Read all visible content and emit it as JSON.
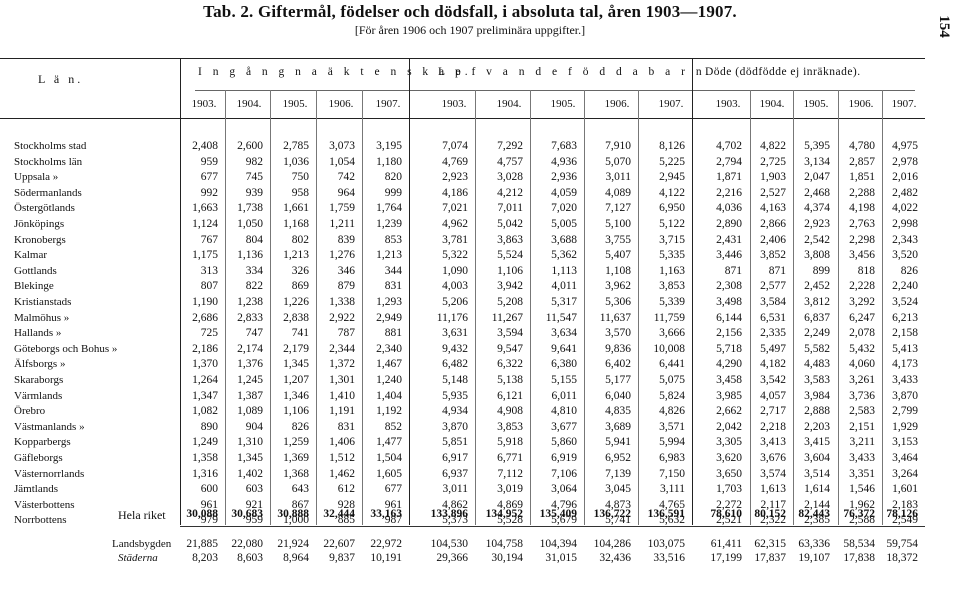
{
  "title": "Tab. 2. Giftermål, födelser och dödsfall, i absoluta tal, åren 1903—1907.",
  "subtitle": "[För åren 1906 och 1907 preliminära uppgifter.]",
  "page_number": "154",
  "lan_header": "L ä n.",
  "groups": [
    "I n g å n g n a   ä k t e n s k a p.",
    "L e f v a n d e   f ö d d a   b a r n.",
    "Döde (dödfödde ej inräknade)."
  ],
  "years": [
    "1903.",
    "1904.",
    "1905.",
    "1906.",
    "1907."
  ],
  "rows": [
    {
      "name": "Stockholms stad",
      "v": [
        "2,408",
        "2,600",
        "2,785",
        "3,073",
        "3,195",
        "7,074",
        "7,292",
        "7,683",
        "7,910",
        "8,126",
        "4,702",
        "4,822",
        "5,395",
        "4,780",
        "4,975"
      ]
    },
    {
      "name": "Stockholms    län",
      "v": [
        "959",
        "982",
        "1,036",
        "1,054",
        "1,180",
        "4,769",
        "4,757",
        "4,936",
        "5,070",
        "5,225",
        "2,794",
        "2,725",
        "3,134",
        "2,857",
        "2,978"
      ]
    },
    {
      "name": "Uppsala       »",
      "v": [
        "677",
        "745",
        "750",
        "742",
        "820",
        "2,923",
        "3,028",
        "2,936",
        "3,011",
        "2,945",
        "1,871",
        "1,903",
        "2,047",
        "1,851",
        "2,016"
      ]
    },
    {
      "name": "Södermanlands",
      "v": [
        "992",
        "939",
        "958",
        "964",
        "999",
        "4,186",
        "4,212",
        "4,059",
        "4,089",
        "4,122",
        "2,216",
        "2,527",
        "2,468",
        "2,288",
        "2,482"
      ]
    },
    {
      "name": "Östergötlands",
      "v": [
        "1,663",
        "1,738",
        "1,661",
        "1,759",
        "1,764",
        "7,021",
        "7,011",
        "7,020",
        "7,127",
        "6,950",
        "4,036",
        "4,163",
        "4,374",
        "4,198",
        "4,022"
      ]
    },
    {
      "name": "Jönköpings",
      "v": [
        "1,124",
        "1,050",
        "1,168",
        "1,211",
        "1,239",
        "4,962",
        "5,042",
        "5,005",
        "5,100",
        "5,122",
        "2,890",
        "2,866",
        "2,923",
        "2,763",
        "2,998"
      ]
    },
    {
      "name": "Kronobergs",
      "v": [
        "767",
        "804",
        "802",
        "839",
        "853",
        "3,781",
        "3,863",
        "3,688",
        "3,755",
        "3,715",
        "2,431",
        "2,406",
        "2,542",
        "2,298",
        "2,343"
      ]
    },
    {
      "name": "Kalmar",
      "v": [
        "1,175",
        "1,136",
        "1,213",
        "1,276",
        "1,213",
        "5,322",
        "5,524",
        "5,362",
        "5,407",
        "5,335",
        "3,446",
        "3,852",
        "3,808",
        "3,456",
        "3,520"
      ]
    },
    {
      "name": "Gottlands",
      "v": [
        "313",
        "334",
        "326",
        "346",
        "344",
        "1,090",
        "1,106",
        "1,113",
        "1,108",
        "1,163",
        "871",
        "871",
        "899",
        "818",
        "826"
      ]
    },
    {
      "name": "Blekinge",
      "v": [
        "807",
        "822",
        "869",
        "879",
        "831",
        "4,003",
        "3,942",
        "4,011",
        "3,962",
        "3,853",
        "2,308",
        "2,577",
        "2,452",
        "2,228",
        "2,240"
      ]
    },
    {
      "name": "Kristianstads",
      "v": [
        "1,190",
        "1,238",
        "1,226",
        "1,338",
        "1,293",
        "5,206",
        "5,208",
        "5,317",
        "5,306",
        "5,339",
        "3,498",
        "3,584",
        "3,812",
        "3,292",
        "3,524"
      ]
    },
    {
      "name": "Malmöhus      »",
      "v": [
        "2,686",
        "2,833",
        "2,838",
        "2,922",
        "2,949",
        "11,176",
        "11,267",
        "11,547",
        "11,637",
        "11,759",
        "6,144",
        "6,531",
        "6,837",
        "6,247",
        "6,213"
      ]
    },
    {
      "name": "Hallands      »",
      "v": [
        "725",
        "747",
        "741",
        "787",
        "881",
        "3,631",
        "3,594",
        "3,634",
        "3,570",
        "3,666",
        "2,156",
        "2,335",
        "2,249",
        "2,078",
        "2,158"
      ]
    },
    {
      "name": "Göteborgs och Bohus »",
      "v": [
        "2,186",
        "2,174",
        "2,179",
        "2,344",
        "2,340",
        "9,432",
        "9,547",
        "9,641",
        "9,836",
        "10,008",
        "5,718",
        "5,497",
        "5,582",
        "5,432",
        "5,413"
      ]
    },
    {
      "name": "Älfsborgs     »",
      "v": [
        "1,370",
        "1,376",
        "1,345",
        "1,372",
        "1,467",
        "6,482",
        "6,322",
        "6,380",
        "6,402",
        "6,441",
        "4,290",
        "4,182",
        "4,483",
        "4,060",
        "4,173"
      ]
    },
    {
      "name": "Skaraborgs",
      "v": [
        "1,264",
        "1,245",
        "1,207",
        "1,301",
        "1,240",
        "5,148",
        "5,138",
        "5,155",
        "5,177",
        "5,075",
        "3,458",
        "3,542",
        "3,583",
        "3,261",
        "3,433"
      ]
    },
    {
      "name": "Värmlands",
      "v": [
        "1,347",
        "1,387",
        "1,346",
        "1,410",
        "1,404",
        "5,935",
        "6,121",
        "6,011",
        "6,040",
        "5,824",
        "3,985",
        "4,057",
        "3,984",
        "3,736",
        "3,870"
      ]
    },
    {
      "name": "Örebro",
      "v": [
        "1,082",
        "1,089",
        "1,106",
        "1,191",
        "1,192",
        "4,934",
        "4,908",
        "4,810",
        "4,835",
        "4,826",
        "2,662",
        "2,717",
        "2,888",
        "2,583",
        "2,799"
      ]
    },
    {
      "name": "Västmanlands  »",
      "v": [
        "890",
        "904",
        "826",
        "831",
        "852",
        "3,870",
        "3,853",
        "3,677",
        "3,689",
        "3,571",
        "2,042",
        "2,218",
        "2,203",
        "2,151",
        "1,929"
      ]
    },
    {
      "name": "Kopparbergs",
      "v": [
        "1,249",
        "1,310",
        "1,259",
        "1,406",
        "1,477",
        "5,851",
        "5,918",
        "5,860",
        "5,941",
        "5,994",
        "3,305",
        "3,413",
        "3,415",
        "3,211",
        "3,153"
      ]
    },
    {
      "name": "Gäfleborgs",
      "v": [
        "1,358",
        "1,345",
        "1,369",
        "1,512",
        "1,504",
        "6,917",
        "6,771",
        "6,919",
        "6,952",
        "6,983",
        "3,620",
        "3,676",
        "3,604",
        "3,433",
        "3,464"
      ]
    },
    {
      "name": "Västernorrlands",
      "v": [
        "1,316",
        "1,402",
        "1,368",
        "1,462",
        "1,605",
        "6,937",
        "7,112",
        "7,106",
        "7,139",
        "7,150",
        "3,650",
        "3,574",
        "3,514",
        "3,351",
        "3,264"
      ]
    },
    {
      "name": "Jämtlands",
      "v": [
        "600",
        "603",
        "643",
        "612",
        "677",
        "3,011",
        "3,019",
        "3,064",
        "3,045",
        "3,111",
        "1,703",
        "1,613",
        "1,614",
        "1,546",
        "1,601"
      ]
    },
    {
      "name": "Västerbottens",
      "v": [
        "961",
        "921",
        "867",
        "928",
        "961",
        "4,862",
        "4,869",
        "4,796",
        "4,873",
        "4,765",
        "2,272",
        "2,117",
        "2,144",
        "1,962",
        "2,183"
      ]
    },
    {
      "name": "Norrbottens",
      "v": [
        "979",
        "959",
        "1,000",
        "885",
        "987",
        "5,373",
        "5,528",
        "5,679",
        "5,741",
        "5,632",
        "2,521",
        "2,322",
        "2,385",
        "2,588",
        "2,549"
      ]
    }
  ],
  "total": {
    "name": "Hela riket",
    "v": [
      "30,088",
      "30,683",
      "30,888",
      "32,444",
      "33,163",
      "133,896",
      "134,952",
      "135,409",
      "136,722",
      "136,591",
      "78,610",
      "80,152",
      "82,443",
      "76,372",
      "78,126"
    ]
  },
  "bottom": [
    {
      "name": "Landsbygden",
      "v": [
        "21,885",
        "22,080",
        "21,924",
        "22,607",
        "22,972",
        "104,530",
        "104,758",
        "104,394",
        "104,286",
        "103,075",
        "61,411",
        "62,315",
        "63,336",
        "58,534",
        "59,754"
      ]
    },
    {
      "name": "Städerna",
      "v": [
        "8,203",
        "8,603",
        "8,964",
        "9,837",
        "10,191",
        "29,366",
        "30,194",
        "31,015",
        "32,436",
        "33,516",
        "17,199",
        "17,837",
        "19,107",
        "17,838",
        "18,372"
      ]
    }
  ]
}
